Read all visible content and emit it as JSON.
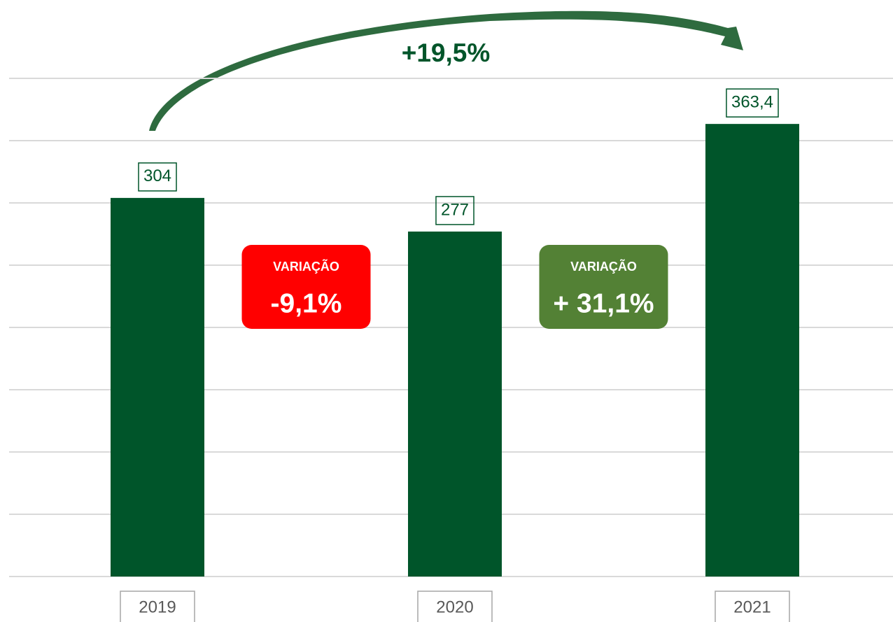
{
  "chart_data": {
    "type": "bar",
    "categories": [
      "2019",
      "2020",
      "2021"
    ],
    "values": [
      304,
      277,
      363.4
    ],
    "value_labels": [
      "304",
      "277",
      "363,4"
    ],
    "color": "#00552a",
    "ylim": [
      0,
      400
    ],
    "yticks": [
      0,
      50,
      100,
      150,
      200,
      250,
      300,
      350,
      400
    ],
    "grid": true,
    "annotations": [
      {
        "text": "+19,5%",
        "color": "#00552a"
      },
      {
        "label": "VARIAÇÃO",
        "text": "-9,1%",
        "color": "#ff0000"
      },
      {
        "label": "VARIAÇÃO",
        "text": "+ 31,1%",
        "color": "#538135"
      }
    ]
  }
}
